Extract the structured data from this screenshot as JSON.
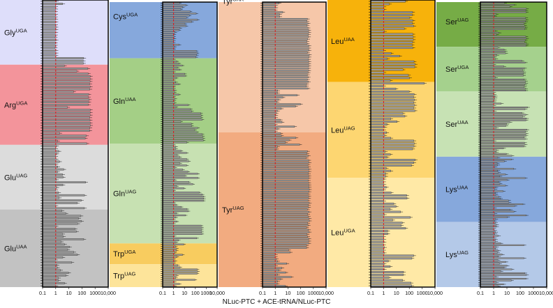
{
  "chart_data": {
    "type": "bar",
    "orientation": "horizontal",
    "x_scale": "log",
    "xlim": [
      0.1,
      10000
    ],
    "xticks": [
      "0.1",
      "1",
      "10",
      "100",
      "1000",
      "10,000"
    ],
    "reference_line": 1,
    "xlabel": "NLuc-PTC + ACE-tRNA/NLuc-PTC",
    "colors": {
      "reference_line": "#e0141a",
      "bar_fill": "#9a9a9a",
      "Gly_UGA": "#dedefa",
      "Arg_UGA": "#f3949b",
      "Glu_UAG": "#dcdcdc",
      "Glu_UAA": "#c2c2c2",
      "Cys_UGA": "#86a8dc",
      "Gln_UAA": "#a4cf86",
      "Gln_UAG": "#c7e1b2",
      "Trp_UGA": "#f8cc5f",
      "Trp_UAG": "#fde49a",
      "Tyr_UAA": "#f6c7a9",
      "Tyr_UAG": "#f2ab80",
      "Leu_UAA": "#f7b20b",
      "Leu_UAG": "#fdd671",
      "Leu_UGA": "#ffe9a6",
      "Ser_UAG": "#76ac46",
      "Ser_UGA": "#a5d18d",
      "Ser_UAA": "#c7e2b4",
      "Lys_UAA": "#86a8dc",
      "Lys_UAG": "#b4c9e8"
    },
    "panels": [
      {
        "id": "p1",
        "groups": [
          {
            "id": "Gly_UGA",
            "aa": "Gly",
            "codon": "UGA",
            "values": [
              1.13,
              3.41,
              1,
              1,
              0.97,
              1,
              0.94,
              1.01,
              1.04,
              0.98,
              1.04,
              1.04,
              1.02,
              0.96,
              0.91,
              1.07,
              0.94,
              0.93,
              0.9,
              1.04,
              1.06,
              1.04,
              136,
              125,
              129
            ]
          },
          {
            "id": "Arg_UGA",
            "aa": "Arg",
            "codon": "UGA",
            "values": [
              4.58,
              284,
              40.9,
              301,
              432,
              427,
              418,
              389,
              427,
              400,
              22.9,
              332,
              303,
              362,
              332,
              302,
              8.04,
              432,
              425,
              428,
              398,
              416,
              423,
              449,
              398,
              390,
              2.04,
              219,
              178,
              1.39,
              235
            ]
          },
          {
            "id": "Glu_UAG",
            "aa": "Glu",
            "codon": "UAG",
            "values": [
              1.16,
              1,
              1.75,
              1.18,
              1,
              1.06,
              1.94,
              1.03,
              1.43,
              4.13,
              1.38,
              3.35,
              3.7,
              1.12,
              190,
              3.51,
              1.24,
              1,
              1.65,
              157,
              1.86,
              90.1,
              43.8,
              1.03,
              153
            ]
          },
          {
            "id": "Glu_UAA",
            "aa": "Glu",
            "codon": "UAA",
            "values": [
              3.01,
              5.99,
              83.3,
              55.5,
              91.8,
              47.4,
              1.05,
              29.7,
              37.8,
              3.3,
              3.86,
              137,
              2.62,
              4.7,
              11.1,
              8.17,
              23.7,
              45.6,
              3.48,
              0.94,
              16.9,
              1.25,
              1.34,
              2.34,
              9.52,
              6.29,
              1.63,
              1.62,
              4.68,
              1.02
            ]
          }
        ]
      },
      {
        "id": "p2",
        "groups": [
          {
            "id": "Cys_UGA",
            "aa": "Cys",
            "codon": "UGA",
            "values": [
              3.61,
              14.1,
              6.74,
              4.65,
              33.8,
              120,
              28.1,
              15.4,
              159,
              46.7,
              11.3,
              14.4,
              3.99,
              3.2,
              1.39,
              1.14,
              1.07,
              1.16,
              1.01,
              0.99,
              3.34,
              1.23,
              1.09,
              122,
              147,
              133,
              115
            ]
          },
          {
            "id": "Gln_UAA",
            "aa": "Gln",
            "codon": "UAA",
            "values": [
              1.05,
              2.04,
              3.17,
              6.42,
              2.25,
              3.76,
              1.04,
              10.5,
              11.7,
              1.79,
              1.01,
              1.61,
              3.13,
              1.1,
              1.05,
              1.33,
              1.26,
              3.13,
              1.07,
              1.4,
              1.13,
              1.24,
              22.7,
              1.73,
              36.6,
              46.3,
              317,
              345,
              339,
              423,
              4.67,
              43.3,
              46.5,
              167,
              88.4,
              143,
              429,
              480,
              523,
              549,
              16.7
            ]
          },
          {
            "id": "Gln_UAG",
            "aa": "Gln",
            "codon": "UAG",
            "values": [
              1.02,
              1.64,
              1.63,
              4.98,
              15.8,
              2.22,
              3.77,
              16.3,
              24.8,
              3.95,
              16.2,
              1.4,
              7.03,
              21.4,
              166,
              11.5,
              170,
              1.34,
              25.7,
              59.5,
              1.95,
              9.01,
              1.11,
              234,
              440,
              565,
              585,
              559,
              1.12,
              1.78,
              5.11,
              17.5,
              22.2,
              1.85,
              12.3,
              1.66,
              1.04,
              2.03,
              1.02,
              351,
              403,
              367,
              384,
              412,
              1.2,
              137,
              2.86,
              1.73
            ]
          },
          {
            "id": "Trp_UGA",
            "aa": "Trp",
            "codon": "UGA",
            "values": [
              8.79,
              1.51,
              1.96,
              1.87,
              1.31,
              6.72,
              2.12,
              1.08,
              1.41,
              1.08
            ]
          },
          {
            "id": "Trp_UAG",
            "aa": "Trp",
            "codon": "UAG",
            "values": [
              2.44,
              4.02,
              150,
              169,
              148,
              2.05,
              1.57,
              94.8,
              1.23,
              3.51,
              1.34
            ]
          }
        ]
      },
      {
        "id": "p3",
        "groups": [
          {
            "id": "Tyr_UAA",
            "aa": "Tyr",
            "codon": "UAA",
            "values": [
              2.01,
              1.11,
              1.11,
              1.01,
              3.93,
              2.21,
              2.3,
              341,
              317,
              388,
              325,
              383,
              432,
              445,
              416,
              420,
              363,
              319,
              331,
              455,
              434,
              459,
              345,
              485,
              460,
              420,
              452,
              436,
              441,
              425,
              433,
              389,
              342,
              396,
              342,
              403,
              301,
              285,
              380,
              1.58,
              1.54,
              54.6,
              4.05,
              1.86,
              1.42,
              97.3,
              40.3,
              3.02,
              1.48,
              1.18,
              1.11,
              1.09,
              2.49,
              3.46,
              1.01,
              33.4,
              1.67,
              1.03
            ]
          },
          {
            "id": "Tyr_UAG",
            "aa": "Tyr",
            "codon": "UAG",
            "values": [
              2.69,
              3.09,
              43,
              12.6,
              6.44,
              84.4,
              1.53,
              1.32,
              348,
              321,
              398,
              272,
              435,
              468,
              382,
              407,
              463,
              461,
              412,
              445,
              436,
              405,
              437,
              458,
              470,
              485,
              465,
              388,
              441,
              429,
              390,
              480,
              410,
              425,
              340,
              471,
              360,
              402,
              476,
              487,
              368,
              396,
              293,
              418,
              476,
              325,
              356,
              448,
              442,
              437,
              294,
              293,
              11.3,
              15.3,
              1.04,
              1.02,
              1.2,
              1.51,
              8.2,
              1.06,
              3.38,
              2.01,
              6.82,
              1.54,
              18.5,
              2.7,
              1.55,
              1.45,
              6.36
            ]
          }
        ]
      },
      {
        "id": "p4",
        "groups": [
          {
            "id": "Leu_UAA",
            "aa": "Leu",
            "codon": "UAA",
            "values": [
              50.2,
              2.8,
              1.06,
              1.11,
              182,
              169,
              110,
              190,
              175,
              222,
              41.1,
              1.18,
              188,
              205,
              208,
              182,
              164,
              190,
              1.04,
              3.94,
              18,
              1.97,
              236,
              288,
              266,
              32.3,
              1.06,
              85.6,
              107,
              3.34
            ]
          },
          {
            "id": "Leu_UAG",
            "aa": "Leu",
            "codon": "UAG",
            "values": [
              1480,
              1,
              9.12,
              101,
              243,
              221,
              262,
              225,
              265,
              226,
              277,
              31.9,
              46,
              3.63,
              11.4,
              1.86,
              1.24,
              1.01,
              1.75,
              1.24,
              3.68,
              227,
              247,
              236,
              181,
              1.36,
              3.39,
              1.86,
              288,
              225,
              152,
              1.61,
              3.67,
              1.5,
              1.47
            ]
          },
          {
            "id": "Leu_UGA",
            "aa": "Leu",
            "codon": "UGA",
            "values": [
              1.09,
              1.01,
              1.07,
              1.62,
              1.02,
              3.9,
              63.1,
              67.2,
              1.04,
              6.26,
              9.5,
              3.29,
              21.3,
              1.15,
              121,
              5.15,
              28.9,
              23.9,
              52.4,
              2.07,
              2.12,
              1,
              1.06,
              1.09,
              1,
              1.18,
              1.01,
              1.13,
              221,
              160,
              2.35,
              1.1,
              3.31,
              1.13,
              35.6,
              34.1,
              2.65,
              30.9,
              138,
              157
            ]
          }
        ]
      },
      {
        "id": "p5",
        "groups": [
          {
            "id": "Ser_UAG",
            "aa": "Ser",
            "codon": "UAG",
            "values": [
              6.63,
              35.9,
              17,
              295,
              266,
              283,
              1.54,
              1.21,
              258,
              277,
              256,
              197,
              212,
              241,
              223,
              1.32,
              2.54,
              1.69,
              264,
              296,
              237,
              216,
              296,
              273
            ]
          },
          {
            "id": "Ser_UGA",
            "aa": "Ser",
            "codon": "UGA",
            "values": [
              2.11,
              6.2,
              7.3,
              7.97,
              1.78,
              1.13,
              1.42,
              133,
              239,
              1.01,
              5.88,
              209,
              152,
              182,
              175,
              175,
              1.36,
              204,
              247,
              259,
              221,
              203,
              244,
              260
            ]
          },
          {
            "id": "Ser_UAA",
            "aa": "Ser",
            "codon": "UAA",
            "values": [
              1.01,
              1.09,
              1.29,
              1.25,
              1.13,
              1.05,
              3.74,
              1.02,
              355,
              233,
              1.12,
              135,
              270,
              158,
              294,
              270,
              16.8,
              9.48,
              8.36,
              1.61,
              316,
              249,
              278,
              270,
              203,
              242,
              1.07,
              213,
              234,
              188,
              5.51,
              1.67,
              1.59,
              9.16,
              23.6
            ]
          },
          {
            "id": "Lys_UAA",
            "aa": "Lys",
            "codon": "UAA",
            "values": [
              2.08,
              21.6,
              6.43,
              1.85,
              2.03,
              1.26,
              32.9,
              2.03,
              2.31,
              7.95,
              2.95,
              238,
              10.2,
              2.36,
              2.98,
              7.93,
              1.46,
              1.25,
              5.18,
              1.34,
              1.44,
              2.53,
              3.19,
              13.2,
              14.3,
              163,
              39.4,
              1.13,
              17.7,
              34.3,
              1.24,
              281,
              10.9,
              1.42,
              1.15
            ]
          },
          {
            "id": "Lys_UAG",
            "aa": "Lys",
            "codon": "UAG",
            "values": [
              1.34,
              1.63,
              1.62,
              1.02,
              1.16,
              1.39,
              1.24,
              2.27,
              1.09,
              1.34,
              1.4,
              3.45,
              191,
              1.6,
              1.41,
              2.34,
              1.92,
              4.43,
              2.3,
              193,
              2.12,
              8.35,
              2.75,
              10.2,
              6.21,
              23.7,
              3.51,
              223,
              296,
              1.57,
              278,
              21.6,
              1.62,
              5.55,
              2.22
            ]
          }
        ]
      }
    ]
  }
}
